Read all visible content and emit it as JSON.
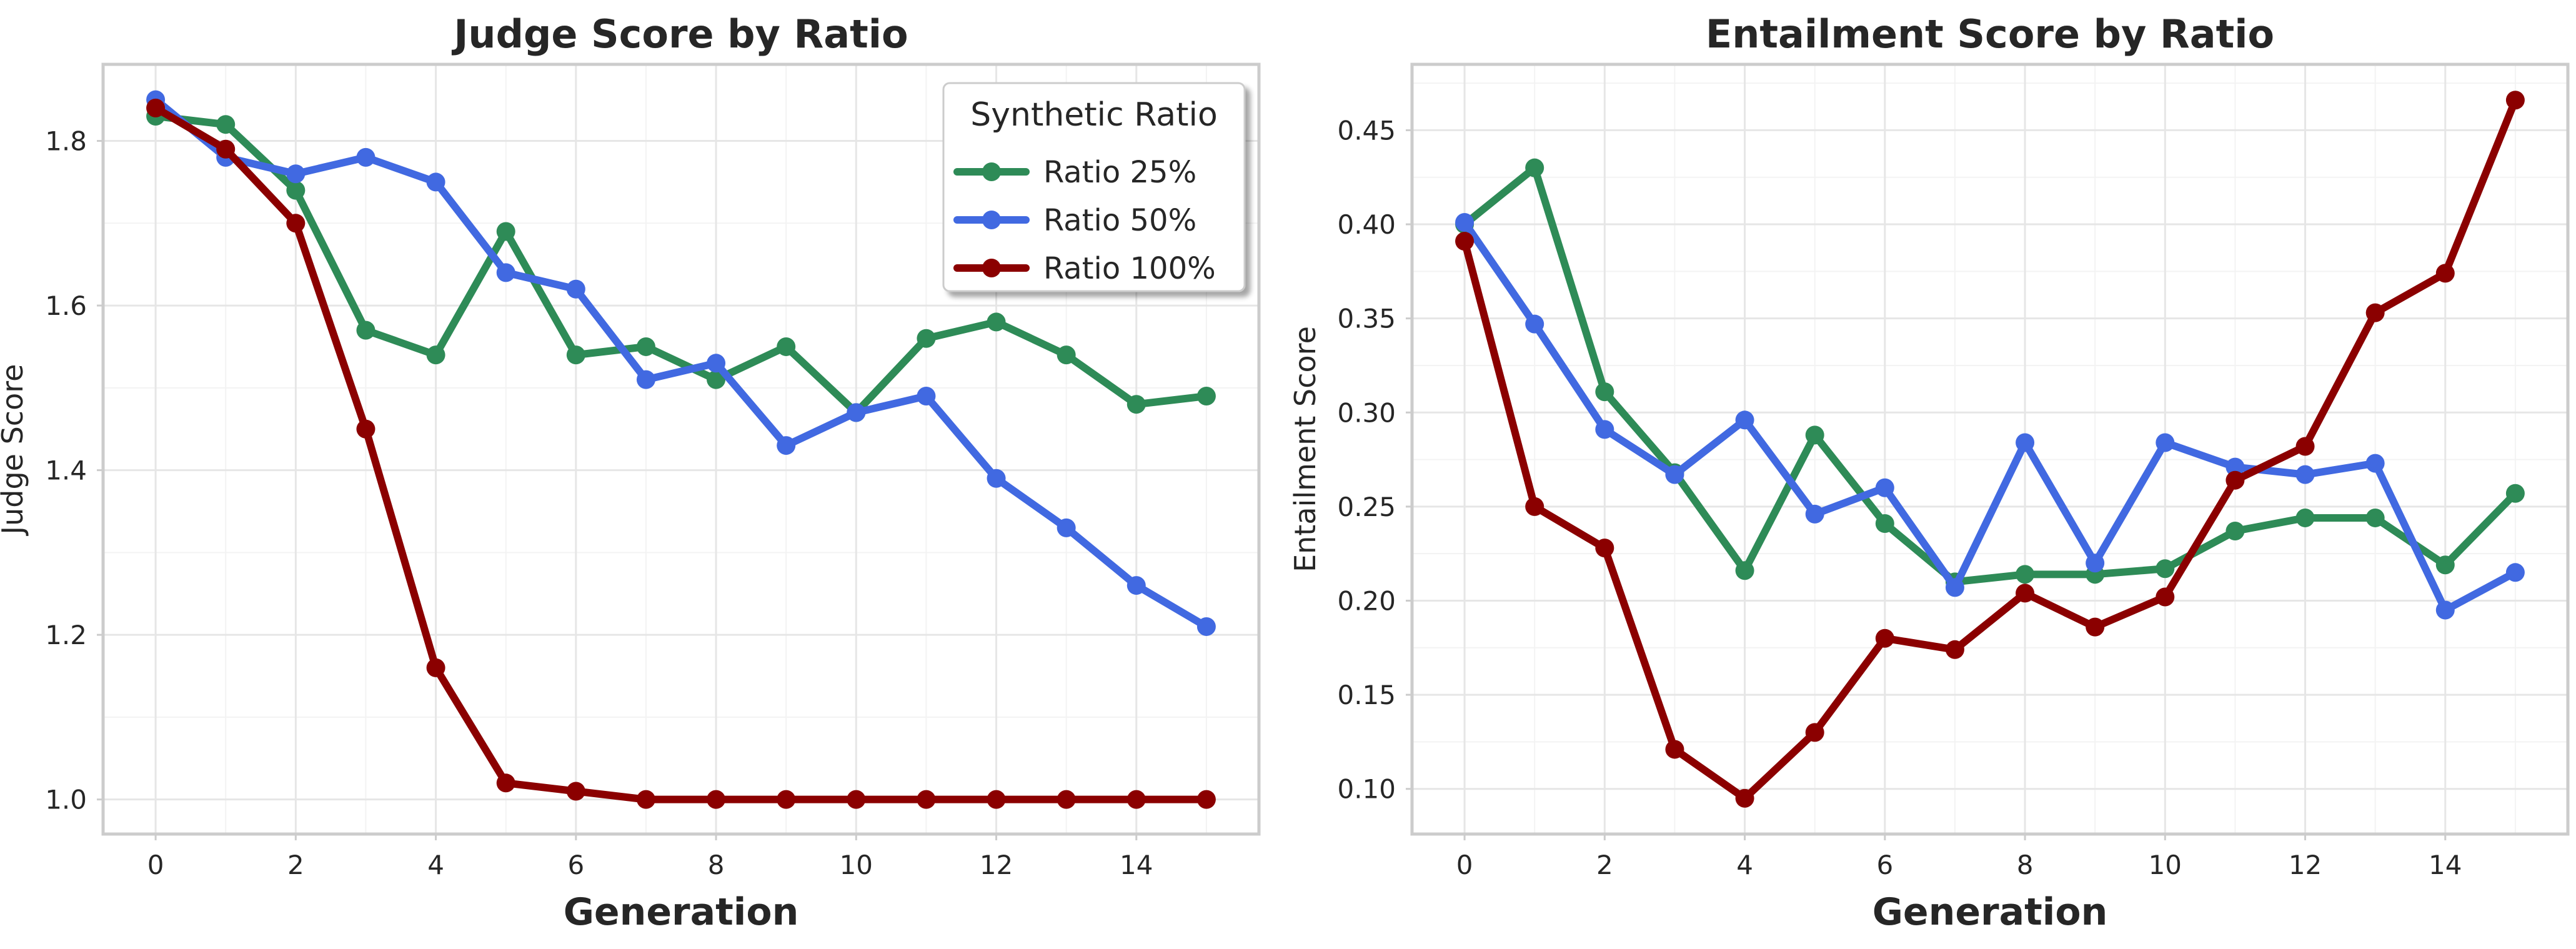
{
  "colors": {
    "ratio_25": "#2e8b57",
    "ratio_50": "#4169e1",
    "ratio_100": "#8b0000",
    "grid": "#ebebeb",
    "frame": "#cccccc"
  },
  "chart_data": [
    {
      "type": "line",
      "title": "Judge Score by Ratio",
      "xlabel": "Generation",
      "ylabel": "Judge Score",
      "xlim": [
        -0.75,
        15.75
      ],
      "ylim": [
        0.958,
        1.893
      ],
      "xticks": [
        0,
        2,
        4,
        6,
        8,
        10,
        12,
        14
      ],
      "yticks": [
        1.0,
        1.2,
        1.4,
        1.6,
        1.8
      ],
      "grid": true,
      "legend": {
        "title": "Synthetic Ratio",
        "position": "top-right"
      },
      "x": [
        0,
        1,
        2,
        3,
        4,
        5,
        6,
        7,
        8,
        9,
        10,
        11,
        12,
        13,
        14,
        15
      ],
      "series": [
        {
          "name": "Ratio 25%",
          "color": "#2e8b57",
          "values": [
            1.83,
            1.82,
            1.74,
            1.57,
            1.54,
            1.69,
            1.54,
            1.55,
            1.51,
            1.55,
            1.47,
            1.56,
            1.58,
            1.54,
            1.48,
            1.49
          ]
        },
        {
          "name": "Ratio 50%",
          "color": "#4169e1",
          "values": [
            1.85,
            1.78,
            1.76,
            1.78,
            1.75,
            1.64,
            1.62,
            1.51,
            1.53,
            1.43,
            1.47,
            1.49,
            1.39,
            1.33,
            1.26,
            1.21
          ]
        },
        {
          "name": "Ratio 100%",
          "color": "#8b0000",
          "values": [
            1.84,
            1.79,
            1.7,
            1.45,
            1.16,
            1.02,
            1.01,
            1.0,
            1.0,
            1.0,
            1.0,
            1.0,
            1.0,
            1.0,
            1.0,
            1.0
          ]
        }
      ]
    },
    {
      "type": "line",
      "title": "Entailment Score by Ratio",
      "xlabel": "Generation",
      "ylabel": "Entailment Score",
      "xlim": [
        -0.75,
        15.75
      ],
      "ylim": [
        0.076,
        0.485
      ],
      "xticks": [
        0,
        2,
        4,
        6,
        8,
        10,
        12,
        14
      ],
      "yticks": [
        0.1,
        0.15,
        0.2,
        0.25,
        0.3,
        0.35,
        0.4,
        0.45
      ],
      "grid": true,
      "x": [
        0,
        1,
        2,
        3,
        4,
        5,
        6,
        7,
        8,
        9,
        10,
        11,
        12,
        13,
        14,
        15
      ],
      "series": [
        {
          "name": "Ratio 25%",
          "color": "#2e8b57",
          "values": [
            0.4,
            0.43,
            0.311,
            0.268,
            0.216,
            0.288,
            0.241,
            0.21,
            0.214,
            0.214,
            0.217,
            0.237,
            0.244,
            0.244,
            0.219,
            0.257
          ]
        },
        {
          "name": "Ratio 50%",
          "color": "#4169e1",
          "values": [
            0.401,
            0.347,
            0.291,
            0.267,
            0.296,
            0.246,
            0.26,
            0.207,
            0.284,
            0.22,
            0.284,
            0.271,
            0.267,
            0.273,
            0.195,
            0.215
          ]
        },
        {
          "name": "Ratio 100%",
          "color": "#8b0000",
          "values": [
            0.391,
            0.25,
            0.228,
            0.121,
            0.095,
            0.13,
            0.18,
            0.174,
            0.204,
            0.186,
            0.202,
            0.264,
            0.282,
            0.353,
            0.374,
            0.466
          ]
        }
      ]
    }
  ]
}
